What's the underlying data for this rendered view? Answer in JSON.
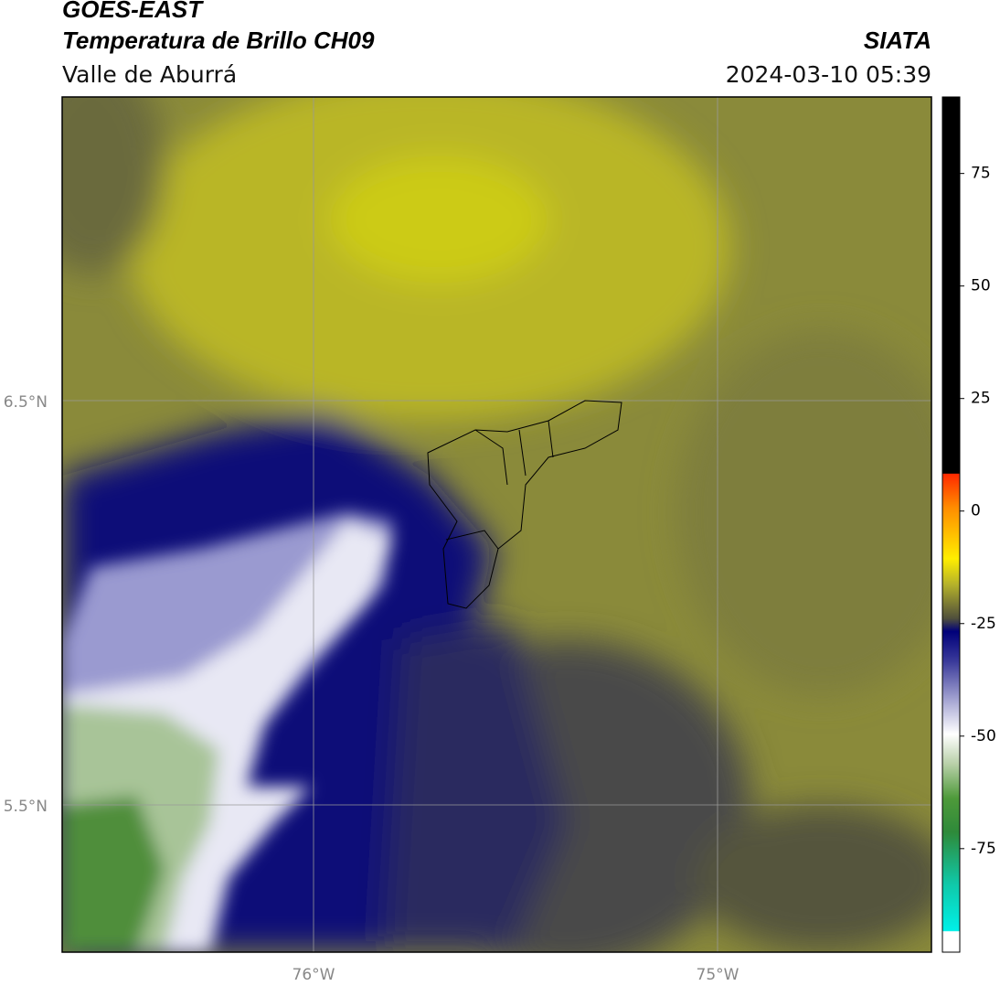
{
  "header": {
    "title": "GOES-EAST",
    "subtitle": "Temperatura de Brillo CH09",
    "region": "Valle de Aburrá",
    "source": "SIATA",
    "datetime": "2024-03-10 05:39"
  },
  "map": {
    "lat_labels": [
      "6.5°N",
      "5.5°N"
    ],
    "lon_labels": [
      "76°W",
      "75°W"
    ]
  },
  "colorbar": {
    "lim": [
      -98,
      92
    ],
    "ticks": [
      75,
      50,
      25,
      0,
      -25,
      -50,
      -75
    ]
  }
}
